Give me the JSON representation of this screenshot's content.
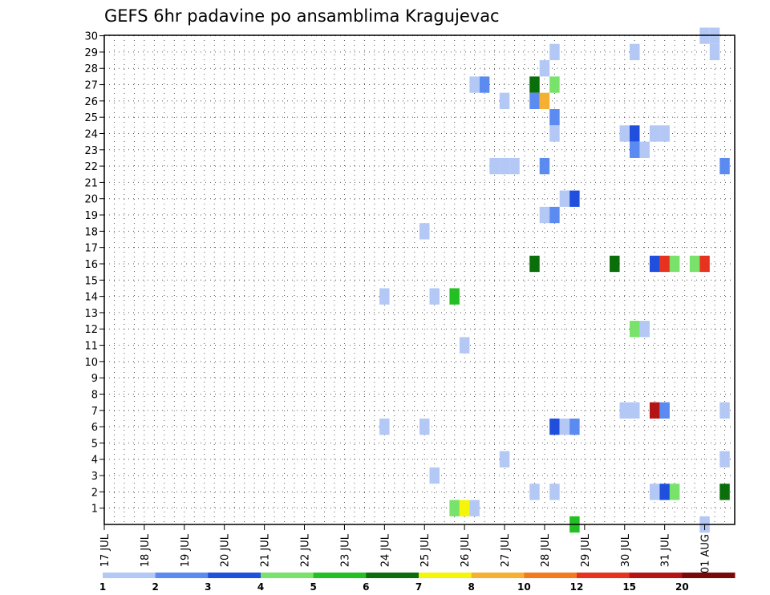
{
  "chart_data": {
    "type": "heatmap",
    "title": "GEFS 6hr padavine po ansamblima Kragujevac",
    "xlabel": "",
    "ylabel": "",
    "y_ticks": [
      "1",
      "2",
      "3",
      "4",
      "5",
      "6",
      "7",
      "8",
      "9",
      "10",
      "11",
      "12",
      "13",
      "14",
      "15",
      "16",
      "17",
      "18",
      "19",
      "20",
      "21",
      "22",
      "23",
      "24",
      "25",
      "26",
      "27",
      "28",
      "29",
      "30"
    ],
    "x_ticks": [
      "17 JUL",
      "18 JUL",
      "19 JUL",
      "20 JUL",
      "21 JUL",
      "22 JUL",
      "23 JUL",
      "24 JUL",
      "25 JUL",
      "26 JUL",
      "27 JUL",
      "28 JUL",
      "29 JUL",
      "30 JUL",
      "31 JUL",
      "01 AUG"
    ],
    "ylim": [
      0,
      30
    ],
    "steps_per_day": 4,
    "grid": "dotted",
    "colorbar": {
      "labels": [
        "1",
        "2",
        "3",
        "4",
        "5",
        "6",
        "7",
        "8",
        "10",
        "12",
        "15",
        "20"
      ],
      "colors": [
        "#b3c8f5",
        "#5b8af0",
        "#1f4fdc",
        "#78e26a",
        "#22c022",
        "#0a6e0a",
        "#f5f50a",
        "#f5b032",
        "#f57a1e",
        "#e6321e",
        "#b41414",
        "#7a0a0a"
      ]
    },
    "cells": [
      {
        "member": 30,
        "step": 60,
        "level": 1
      },
      {
        "member": 30,
        "step": 61,
        "level": 1
      },
      {
        "member": 29,
        "step": 45,
        "level": 1
      },
      {
        "member": 29,
        "step": 53,
        "level": 1
      },
      {
        "member": 29,
        "step": 61,
        "level": 1
      },
      {
        "member": 28,
        "step": 44,
        "level": 1
      },
      {
        "member": 27,
        "step": 37,
        "level": 1
      },
      {
        "member": 27,
        "step": 38,
        "level": 2
      },
      {
        "member": 27,
        "step": 43,
        "level": 6
      },
      {
        "member": 27,
        "step": 45,
        "level": 4
      },
      {
        "member": 26,
        "step": 40,
        "level": 1
      },
      {
        "member": 26,
        "step": 43,
        "level": 2
      },
      {
        "member": 26,
        "step": 44,
        "level": 8
      },
      {
        "member": 25,
        "step": 45,
        "level": 2
      },
      {
        "member": 24,
        "step": 45,
        "level": 1
      },
      {
        "member": 24,
        "step": 52,
        "level": 1
      },
      {
        "member": 24,
        "step": 53,
        "level": 3
      },
      {
        "member": 24,
        "step": 55,
        "level": 1
      },
      {
        "member": 24,
        "step": 56,
        "level": 1
      },
      {
        "member": 23,
        "step": 53,
        "level": 2
      },
      {
        "member": 23,
        "step": 54,
        "level": 1
      },
      {
        "member": 22,
        "step": 39,
        "level": 1
      },
      {
        "member": 22,
        "step": 40,
        "level": 1
      },
      {
        "member": 22,
        "step": 41,
        "level": 1
      },
      {
        "member": 22,
        "step": 44,
        "level": 2
      },
      {
        "member": 22,
        "step": 62,
        "level": 2
      },
      {
        "member": 20,
        "step": 46,
        "level": 1
      },
      {
        "member": 20,
        "step": 47,
        "level": 3
      },
      {
        "member": 19,
        "step": 44,
        "level": 1
      },
      {
        "member": 19,
        "step": 45,
        "level": 2
      },
      {
        "member": 18,
        "step": 32,
        "level": 1
      },
      {
        "member": 16,
        "step": 43,
        "level": 6
      },
      {
        "member": 16,
        "step": 51,
        "level": 6
      },
      {
        "member": 16,
        "step": 55,
        "level": 3
      },
      {
        "member": 16,
        "step": 56,
        "level": 10
      },
      {
        "member": 16,
        "step": 57,
        "level": 4
      },
      {
        "member": 16,
        "step": 59,
        "level": 4
      },
      {
        "member": 16,
        "step": 60,
        "level": 10
      },
      {
        "member": 14,
        "step": 28,
        "level": 1
      },
      {
        "member": 14,
        "step": 33,
        "level": 1
      },
      {
        "member": 14,
        "step": 35,
        "level": 5
      },
      {
        "member": 12,
        "step": 53,
        "level": 4
      },
      {
        "member": 12,
        "step": 54,
        "level": 1
      },
      {
        "member": 11,
        "step": 36,
        "level": 1
      },
      {
        "member": 7,
        "step": 52,
        "level": 1
      },
      {
        "member": 7,
        "step": 53,
        "level": 1
      },
      {
        "member": 7,
        "step": 55,
        "level": 11
      },
      {
        "member": 7,
        "step": 56,
        "level": 2
      },
      {
        "member": 7,
        "step": 62,
        "level": 1
      },
      {
        "member": 6,
        "step": 28,
        "level": 1
      },
      {
        "member": 6,
        "step": 32,
        "level": 1
      },
      {
        "member": 6,
        "step": 45,
        "level": 3
      },
      {
        "member": 6,
        "step": 46,
        "level": 1
      },
      {
        "member": 6,
        "step": 47,
        "level": 2
      },
      {
        "member": 4,
        "step": 40,
        "level": 1
      },
      {
        "member": 4,
        "step": 62,
        "level": 1
      },
      {
        "member": 3,
        "step": 33,
        "level": 1
      },
      {
        "member": 2,
        "step": 43,
        "level": 1
      },
      {
        "member": 2,
        "step": 45,
        "level": 1
      },
      {
        "member": 2,
        "step": 55,
        "level": 1
      },
      {
        "member": 2,
        "step": 56,
        "level": 3
      },
      {
        "member": 2,
        "step": 57,
        "level": 4
      },
      {
        "member": 2,
        "step": 62,
        "level": 6
      },
      {
        "member": 1,
        "step": 35,
        "level": 4
      },
      {
        "member": 1,
        "step": 36,
        "level": 7
      },
      {
        "member": 1,
        "step": 37,
        "level": 1
      },
      {
        "member": 0,
        "step": 47,
        "level": 5
      },
      {
        "member": 0,
        "step": 60,
        "level": 1
      }
    ]
  }
}
